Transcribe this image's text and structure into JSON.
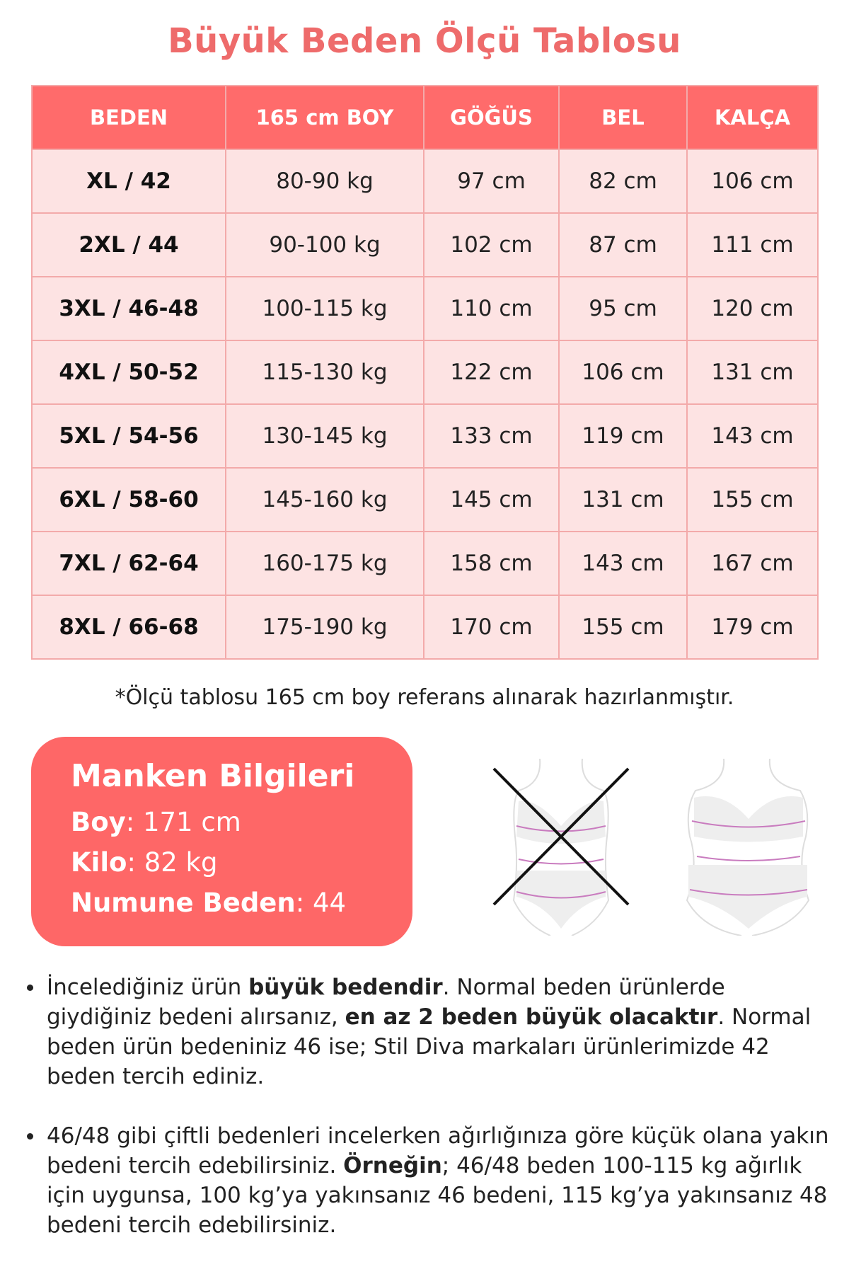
{
  "title": "Büyük Beden Ölçü Tablosu",
  "table": {
    "headers": [
      "BEDEN",
      "165 cm BOY",
      "GÖĞÜS",
      "BEL",
      "KALÇA"
    ],
    "rows": [
      [
        "XL / 42",
        "80-90 kg",
        "97 cm",
        "82 cm",
        "106 cm"
      ],
      [
        "2XL / 44",
        "90-100 kg",
        "102 cm",
        "87 cm",
        "111 cm"
      ],
      [
        "3XL / 46-48",
        "100-115 kg",
        "110 cm",
        "95 cm",
        "120 cm"
      ],
      [
        "4XL / 50-52",
        "115-130 kg",
        "122 cm",
        "106 cm",
        "131 cm"
      ],
      [
        "5XL / 54-56",
        "130-145 kg",
        "133 cm",
        "119 cm",
        "143 cm"
      ],
      [
        "6XL / 58-60",
        "145-160 kg",
        "145 cm",
        "131 cm",
        "155 cm"
      ],
      [
        "7XL / 62-64",
        "160-175 kg",
        "158 cm",
        "143 cm",
        "167 cm"
      ],
      [
        "8XL / 66-68",
        "175-190 kg",
        "170 cm",
        "155 cm",
        "179 cm"
      ]
    ]
  },
  "note": "*Ölçü tablosu 165 cm boy referans alınarak hazırlanmıştır.",
  "manken": {
    "title": "Manken Bilgileri",
    "boy_label": "Boy",
    "boy_value": ": 171 cm",
    "kilo_label": "Kilo",
    "kilo_value": ": 82 kg",
    "numune_label": "Numune Beden",
    "numune_value": ": 44"
  },
  "bullets": [
    {
      "p1": "İncelediğiniz ürün ",
      "b1": "büyük bedendir",
      "p2": ". Normal beden ürünlerde giydiğiniz bedeni alırsanız, ",
      "b2": "en az 2 beden büyük olacaktır",
      "p3": ". Normal beden ürün bedeniniz 46 ise; Stil Diva markaları ürünlerimizde 42 beden tercih ediniz."
    },
    {
      "p1": "46/48 gibi çiftli bedenleri incelerken ağırlığınıza göre küçük olana yakın bedeni tercih edebilirsiniz. ",
      "b1": "Örneğin",
      "p2": "; 46/48 beden 100-115 kg ağırlık için uygunsa, 100 kg’ya yakınsanız 46 bedeni, 115 kg’ya yakınsanız 48 bedeni tercih edebilirsiniz."
    }
  ],
  "colors": {
    "accent": "#ff6b6b",
    "title": "#ee6b6b",
    "row_bg": "#fde3e3",
    "border": "#f3aaaa"
  }
}
